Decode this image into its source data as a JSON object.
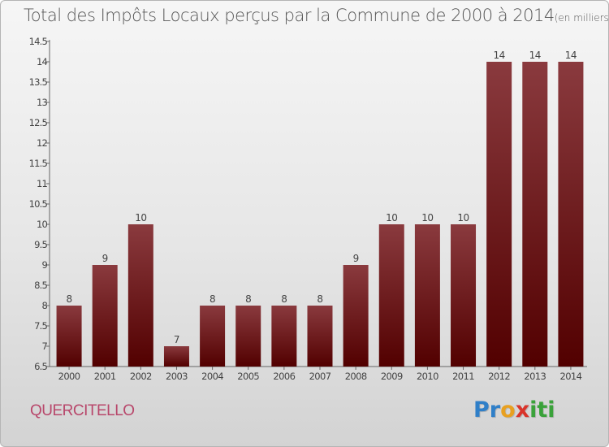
{
  "header": {
    "title": "Total des Impôts Locaux perçus par la Commune de 2000 à 2014",
    "unit": "(en milliers d'€)"
  },
  "footer": {
    "commune": "QUERCITELLO",
    "logo_letters": [
      {
        "char": "P",
        "color": "#2f7fc8"
      },
      {
        "char": "r",
        "color": "#2f7fc8"
      },
      {
        "char": "o",
        "color": "#e8a020"
      },
      {
        "char": "x",
        "color": "#d9342b"
      },
      {
        "char": "i",
        "color": "#3aa23a"
      },
      {
        "char": "t",
        "color": "#3aa23a"
      },
      {
        "char": "i",
        "color": "#3aa23a"
      }
    ]
  },
  "chart_data": {
    "type": "bar",
    "title": "Total des Impôts Locaux perçus par la Commune de 2000 à 2014",
    "xlabel": "",
    "ylabel": "",
    "ylim": [
      6.5,
      14.5
    ],
    "yticks": [
      "6.5",
      "7",
      "7.5",
      "8",
      "8.5",
      "9",
      "9.5",
      "10",
      "10.5",
      "11",
      "11.5",
      "12",
      "12.5",
      "13",
      "13.5",
      "14",
      "14.5"
    ],
    "categories": [
      "2000",
      "2001",
      "2002",
      "2003",
      "2004",
      "2005",
      "2006",
      "2007",
      "2008",
      "2009",
      "2010",
      "2011",
      "2012",
      "2013",
      "2014"
    ],
    "values": [
      8,
      9,
      10,
      7,
      8,
      8,
      8,
      8,
      9,
      10,
      10,
      10,
      14,
      14,
      14
    ],
    "grid": false,
    "colors": {
      "bar_top": "#8a3a3e",
      "bar_bottom": "#520000",
      "axis": "#666666",
      "text": "#444444"
    }
  }
}
